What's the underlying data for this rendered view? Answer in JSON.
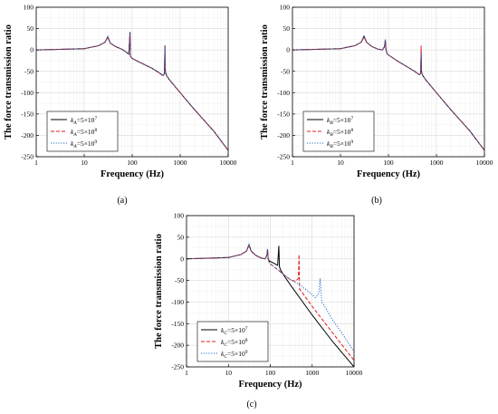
{
  "chart_data": [
    {
      "type": "line",
      "panel_label": "(a)",
      "xlabel": "Frequency (Hz)",
      "ylabel": "The force transmission ratio",
      "xscale": "log",
      "xlim": [
        1,
        10000
      ],
      "ylim": [
        -250,
        100
      ],
      "xticks": [
        "1",
        "10",
        "100",
        "1000",
        "10000"
      ],
      "yticks": [
        "100",
        "50",
        "0",
        "-50",
        "-100",
        "-150",
        "-200",
        "-250"
      ],
      "grid": true,
      "legend_position": "bottom-left",
      "series": [
        {
          "name": "k_A=5×10^7",
          "legend_sub": "A",
          "legend_exp": "7",
          "color": "#000000",
          "dash": "solid",
          "x": [
            1,
            10,
            20,
            27,
            31,
            35,
            45,
            60,
            75,
            85,
            88,
            90,
            92,
            100,
            150,
            250,
            350,
            440,
            470,
            480,
            490,
            520,
            600,
            1000,
            2000,
            5000,
            10000
          ],
          "y": [
            0,
            3,
            10,
            18,
            30,
            16,
            8,
            2,
            -5,
            -10,
            20,
            42,
            -15,
            -20,
            -30,
            -42,
            -52,
            -60,
            -55,
            10,
            -50,
            -60,
            -70,
            -100,
            -140,
            -190,
            -235
          ]
        },
        {
          "name": "k_A=5×10^8",
          "legend_sub": "A",
          "legend_exp": "8",
          "color": "#e31a1c",
          "dash": "dashed",
          "x": [
            1,
            10,
            20,
            27,
            31,
            35,
            45,
            60,
            75,
            85,
            88,
            90,
            92,
            100,
            150,
            250,
            350,
            440,
            470,
            480,
            490,
            520,
            600,
            1000,
            2000,
            5000,
            10000
          ],
          "y": [
            0,
            3,
            10,
            18,
            31,
            16,
            8,
            2,
            -5,
            -10,
            20,
            38,
            -15,
            -20,
            -30,
            -42,
            -52,
            -60,
            -55,
            8,
            -50,
            -60,
            -70,
            -100,
            -140,
            -190,
            -235
          ]
        },
        {
          "name": "k_A=5×10^9",
          "legend_sub": "A",
          "legend_exp": "9",
          "color": "#1f6fd1",
          "dash": "dotted",
          "x": [
            1,
            10,
            20,
            27,
            31,
            35,
            45,
            60,
            75,
            85,
            88,
            90,
            92,
            100,
            150,
            250,
            350,
            440,
            470,
            480,
            490,
            520,
            600,
            1000,
            2000,
            5000,
            10000
          ],
          "y": [
            0,
            3,
            10,
            18,
            32,
            16,
            8,
            2,
            -5,
            -10,
            20,
            44,
            -15,
            -20,
            -30,
            -42,
            -52,
            -60,
            -55,
            6,
            -50,
            -60,
            -70,
            -100,
            -140,
            -190,
            -235
          ]
        }
      ]
    },
    {
      "type": "line",
      "panel_label": "(b)",
      "xlabel": "Frequency (Hz)",
      "ylabel": "The force transmission ratio",
      "xscale": "log",
      "xlim": [
        1,
        10000
      ],
      "ylim": [
        -250,
        100
      ],
      "xticks": [
        "1",
        "10",
        "100",
        "1000",
        "10000"
      ],
      "yticks": [
        "100",
        "50",
        "0",
        "-50",
        "-100",
        "-150",
        "-200",
        "-250"
      ],
      "grid": true,
      "legend_position": "bottom-left",
      "series": [
        {
          "name": "k_B=5×10^7",
          "legend_sub": "B",
          "legend_exp": "7",
          "color": "#000000",
          "dash": "solid",
          "x": [
            1,
            10,
            20,
            27,
            31,
            35,
            45,
            60,
            75,
            83,
            86,
            89,
            95,
            150,
            250,
            350,
            440,
            470,
            480,
            490,
            520,
            600,
            1000,
            2000,
            5000,
            10000
          ],
          "y": [
            0,
            3,
            10,
            18,
            32,
            18,
            8,
            2,
            0,
            8,
            24,
            0,
            -10,
            -25,
            -40,
            -50,
            -58,
            -55,
            -5,
            -52,
            -60,
            -70,
            -100,
            -140,
            -190,
            -235
          ]
        },
        {
          "name": "k_B=5×10^8",
          "legend_sub": "B",
          "legend_exp": "8",
          "color": "#e31a1c",
          "dash": "dashed",
          "x": [
            1,
            10,
            20,
            27,
            31,
            35,
            45,
            60,
            75,
            83,
            86,
            89,
            95,
            150,
            250,
            350,
            440,
            470,
            480,
            490,
            520,
            600,
            1000,
            2000,
            5000,
            10000
          ],
          "y": [
            0,
            3,
            10,
            18,
            30,
            18,
            8,
            2,
            0,
            8,
            22,
            0,
            -10,
            -25,
            -40,
            -50,
            -58,
            -55,
            10,
            -52,
            -60,
            -70,
            -100,
            -140,
            -190,
            -235
          ]
        },
        {
          "name": "k_B=5×10^9",
          "legend_sub": "B",
          "legend_exp": "9",
          "color": "#1f6fd1",
          "dash": "dotted",
          "x": [
            1,
            10,
            20,
            27,
            31,
            35,
            45,
            60,
            75,
            83,
            86,
            89,
            95,
            150,
            250,
            350,
            440,
            470,
            480,
            490,
            520,
            600,
            1000,
            2000,
            5000,
            10000
          ],
          "y": [
            0,
            3,
            10,
            18,
            34,
            18,
            8,
            2,
            0,
            8,
            25,
            0,
            -10,
            -25,
            -40,
            -50,
            -58,
            -55,
            -8,
            -52,
            -60,
            -70,
            -100,
            -140,
            -190,
            -235
          ]
        }
      ]
    },
    {
      "type": "line",
      "panel_label": "(c)",
      "xlabel": "Frequency (Hz)",
      "ylabel": "The force transmission ratio",
      "xscale": "log",
      "xlim": [
        1,
        10000
      ],
      "ylim": [
        -250,
        100
      ],
      "xticks": [
        "1",
        "10",
        "100",
        "1000",
        "10000"
      ],
      "yticks": [
        "100",
        "50",
        "0",
        "-50",
        "-100",
        "-150",
        "-200",
        "-250"
      ],
      "grid": true,
      "legend_position": "bottom-left",
      "series": [
        {
          "name": "k_C=5×10^7",
          "legend_sub": "C",
          "legend_exp": "7",
          "color": "#000000",
          "dash": "solid",
          "x": [
            1,
            10,
            20,
            27,
            31,
            35,
            45,
            60,
            75,
            83,
            86,
            89,
            95,
            120,
            150,
            160,
            165,
            175,
            200,
            300,
            1000,
            3000,
            10000
          ],
          "y": [
            0,
            3,
            10,
            18,
            32,
            18,
            8,
            2,
            0,
            8,
            22,
            0,
            -5,
            -10,
            -15,
            30,
            -18,
            -25,
            -35,
            -60,
            -130,
            -190,
            -250
          ]
        },
        {
          "name": "k_C=5×10^8",
          "legend_sub": "C",
          "legend_exp": "8",
          "color": "#e31a1c",
          "dash": "dashed",
          "x": [
            1,
            10,
            20,
            27,
            31,
            35,
            45,
            60,
            75,
            83,
            86,
            89,
            95,
            150,
            200,
            300,
            400,
            470,
            485,
            500,
            600,
            1000,
            3000,
            10000
          ],
          "y": [
            0,
            3,
            10,
            18,
            30,
            18,
            8,
            2,
            0,
            8,
            22,
            0,
            -10,
            -25,
            -35,
            -48,
            -52,
            -45,
            10,
            -70,
            -80,
            -110,
            -170,
            -235
          ]
        },
        {
          "name": "k_C=5×10^9",
          "legend_sub": "C",
          "legend_exp": "9",
          "color": "#1f6fd1",
          "dash": "dotted",
          "x": [
            1,
            10,
            20,
            27,
            31,
            35,
            45,
            60,
            75,
            83,
            86,
            89,
            95,
            150,
            200,
            300,
            500,
            800,
            1200,
            1450,
            1550,
            1700,
            2000,
            3000,
            5000,
            10000
          ],
          "y": [
            0,
            3,
            10,
            18,
            34,
            18,
            8,
            2,
            0,
            8,
            24,
            0,
            -10,
            -25,
            -35,
            -48,
            -60,
            -75,
            -90,
            -80,
            -45,
            -100,
            -110,
            -140,
            -170,
            -215
          ]
        }
      ]
    }
  ]
}
